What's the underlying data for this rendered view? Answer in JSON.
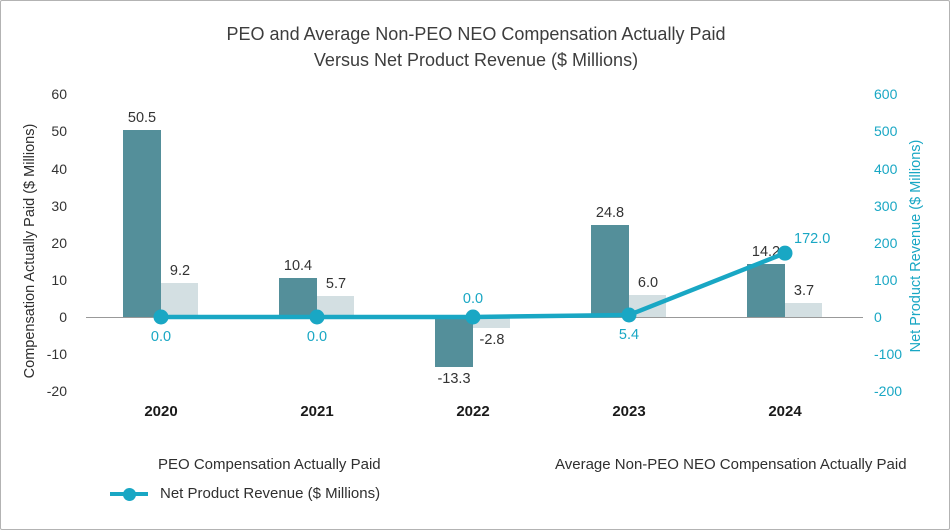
{
  "chart": {
    "title_line1": "PEO and Average Non-PEO NEO Compensation Actually Paid",
    "title_line2": "Versus Net Product Revenue ($ Millions)",
    "left_axis": {
      "title": "Compensation Actually Paid ($ Millions)",
      "ticks": [
        60,
        50,
        40,
        30,
        20,
        10,
        0,
        -10,
        -20
      ],
      "min": -20,
      "max": 60
    },
    "right_axis": {
      "title": "Net Product Revenue ($ Millions)",
      "ticks": [
        600,
        500,
        400,
        300,
        200,
        100,
        0,
        -100,
        -200
      ],
      "min": -200,
      "max": 600
    }
  },
  "chart_data": {
    "type": "bar",
    "title": "PEO and Average Non-PEO NEO Compensation Actually Paid Versus Net Product Revenue ($ Millions)",
    "categories": [
      "2020",
      "2021",
      "2022",
      "2023",
      "2024"
    ],
    "series": [
      {
        "name": "PEO Compensation Actually Paid",
        "type": "bar",
        "axis": "left",
        "color": "#548f9a",
        "values": [
          50.5,
          10.4,
          -13.3,
          24.8,
          14.2
        ]
      },
      {
        "name": "Average Non-PEO NEO Compensation Actually Paid",
        "type": "bar",
        "axis": "left",
        "color": "#d3dfe2",
        "values": [
          9.2,
          5.7,
          -2.8,
          6.0,
          3.7
        ]
      },
      {
        "name": "Net Product Revenue ($ Millions)",
        "type": "line",
        "axis": "right",
        "color": "#19a7c4",
        "values": [
          0.0,
          0.0,
          0.0,
          5.4,
          172.0
        ],
        "label_positions": [
          "below",
          "below",
          "above",
          "below",
          "right"
        ]
      }
    ],
    "ylabel_left": "Compensation Actually Paid ($ Millions)",
    "ylabel_right": "Net Product Revenue ($ Millions)",
    "ylim_left": [
      -20,
      60
    ],
    "ylim_right": [
      -200,
      600
    ],
    "grid": false,
    "legend_position": "bottom"
  },
  "legend": {
    "peo_label": "PEO Compensation Actually Paid",
    "nonpeo_label": "Average Non-PEO NEO Compensation Actually Paid",
    "revenue_label": "Net Product Revenue ($ Millions)"
  },
  "colors": {
    "peo_bar": "#548f9a",
    "nonpeo_bar": "#d3dfe2",
    "revenue_line": "#19a7c4",
    "axis_line": "#999999",
    "title_text": "#3d3d3d"
  }
}
